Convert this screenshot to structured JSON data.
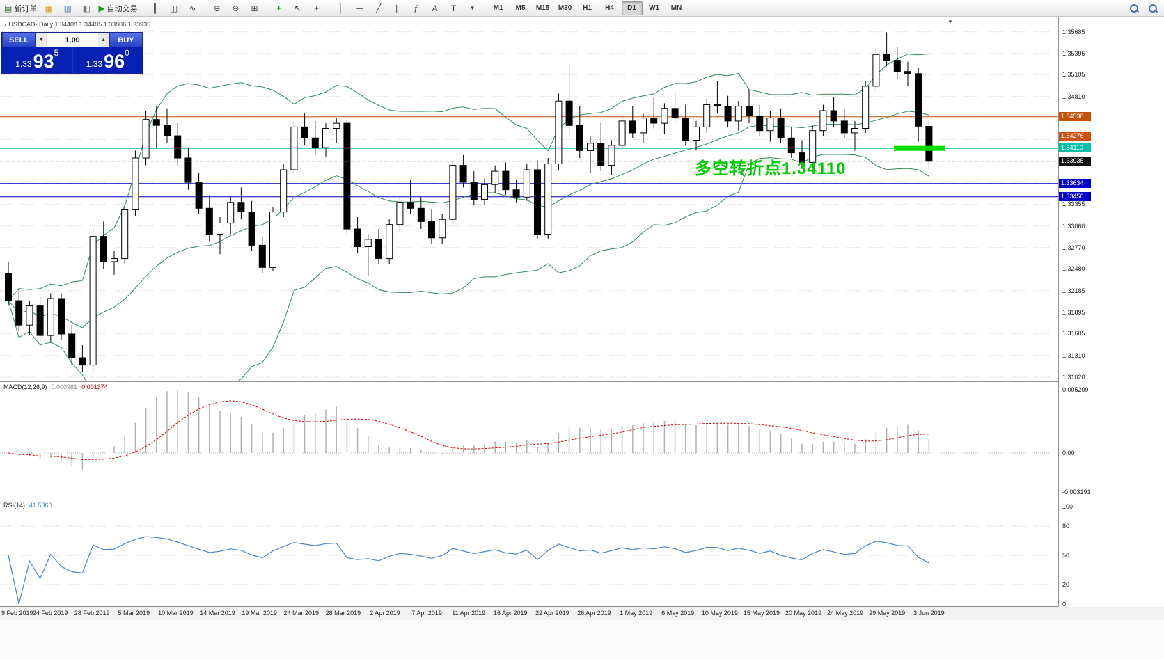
{
  "colors": {
    "up_candle": "#ffffff",
    "down_candle": "#000000",
    "candle_border": "#000000",
    "band_green": "#2e8b57",
    "grid": "#d9d9d9",
    "macd_hist": "#b0b0b0",
    "macd_signal": "#e00000",
    "rsi_line": "#4a86c8",
    "level_orange": "#c65309",
    "level_teal": "#00c0a8",
    "level_blue": "#0000cc",
    "annotation_green": "#00cc00",
    "segment_green": "#00dd00",
    "current_badge": "#111111",
    "panel_blue": "#0d31d6",
    "button_blue": "#2743c8"
  },
  "icons": {
    "symbol-marker": "▴",
    "new-order": "▤",
    "market-watch": "▦",
    "data-window": "▥",
    "navigator": "◧",
    "auto-trading": "▶",
    "bar-chart": "║",
    "candle-chart": "◫",
    "line-chart": "∿",
    "zoom-in": "⊕",
    "zoom-out": "⊖",
    "tile-windows": "⊞",
    "indicators": "+",
    "cursor": "↖",
    "crosshair": "+",
    "vertical-line": "│",
    "horizontal-line": "─",
    "trendline": "╱",
    "channel": "∥",
    "fibonacci": "ƒ",
    "text": "A",
    "label": "T",
    "shapes": "▼",
    "shift-marker": "▼"
  },
  "toolbar": {
    "new_order": "新订单",
    "auto_trading": "自动交易",
    "timeframes": [
      "M1",
      "M5",
      "M15",
      "M30",
      "H1",
      "H4",
      "D1",
      "W1",
      "MN"
    ],
    "active_timeframe": "D1"
  },
  "quote_header": "USDCAD-,Daily  1.34408 1.34485 1.33806 1.33935",
  "trade_panel": {
    "sell_label": "SELL",
    "buy_label": "BUY",
    "volume": "1.00",
    "sell_small": "1.33",
    "sell_main": "93",
    "sell_sup": "5",
    "buy_small": "1.33",
    "buy_main": "96",
    "buy_sup": "0"
  },
  "annotation": {
    "text": "多空转折点1.34110"
  },
  "macd_panel": {
    "label": "MACD(12,26,9)",
    "value1": "0.000961",
    "value2": "0.001374",
    "axis_max": "0.005209",
    "axis_zero": "0.00",
    "axis_min": "-0.003191"
  },
  "rsi_panel": {
    "label": "RSI(14)",
    "value": "41.5360",
    "axis": [
      100,
      80,
      50,
      20,
      0
    ],
    "levels": [
      80,
      50,
      20
    ]
  },
  "chart_data": {
    "type": "candlestick",
    "symbol": "USDCAD-",
    "timeframe": "Daily",
    "ohlc_display": {
      "open": "1.34408",
      "high": "1.34485",
      "low": "1.33806",
      "close": "1.33935"
    },
    "current_price": 1.33935,
    "price_range": [
      1.3096,
      1.3589
    ],
    "y_ticks": [
      "1.35685",
      "1.35395",
      "1.35105",
      "1.34810",
      "1.34520",
      "1.34230",
      "1.33940",
      "1.33645",
      "1.33355",
      "1.33060",
      "1.32770",
      "1.32480",
      "1.32185",
      "1.31895",
      "1.31605",
      "1.31310",
      "1.31020"
    ],
    "x_labels": [
      "9 Feb 2019",
      "24 Feb 2019",
      "28 Feb 2019",
      "5 Mar 2019",
      "10 Mar 2019",
      "14 Mar 2019",
      "19 Mar 2019",
      "24 Mar 2019",
      "28 Mar 2019",
      "2 Apr 2019",
      "7 Apr 2019",
      "11 Apr 2019",
      "16 Apr 2019",
      "22 Apr 2019",
      "26 Apr 2019",
      "1 May 2019",
      "6 May 2019",
      "10 May 2019",
      "15 May 2019",
      "20 May 2019",
      "24 May 2019",
      "29 May 2019",
      "3 Jun 2019"
    ],
    "levels": [
      {
        "label": "1.34538",
        "price": 1.34538,
        "color": "#c65309"
      },
      {
        "label": "1.34276",
        "price": 1.34276,
        "color": "#c65309"
      },
      {
        "label": "1.34110",
        "price": 1.3411,
        "color": "#00c0a8"
      },
      {
        "label": "1.33634",
        "price": 1.33634,
        "color": "#0000cc"
      },
      {
        "label": "1.33456",
        "price": 1.33456,
        "color": "#0000cc"
      }
    ],
    "price_badges": [
      {
        "value": "1.34538",
        "price": 1.34538,
        "bg": "#c65309"
      },
      {
        "value": "1.34276",
        "price": 1.34276,
        "bg": "#c65309"
      },
      {
        "value": "1.34110",
        "price": 1.3411,
        "bg": "#00c0a8"
      },
      {
        "value": "1.33935",
        "price": 1.33935,
        "bg": "#111111"
      },
      {
        "value": "1.33634",
        "price": 1.33634,
        "bg": "#0000cc"
      },
      {
        "value": "1.33456",
        "price": 1.33456,
        "bg": "#0000cc"
      }
    ],
    "green_segment": {
      "price": 1.3411,
      "from_frac": 0.845,
      "to_frac": 0.894
    },
    "indicators": [
      {
        "name": "Bollinger Bands",
        "period": 20,
        "deviation": 2
      },
      {
        "name": "MACD",
        "params": [
          12,
          26,
          9
        ],
        "current": [
          0.000961,
          0.001374
        ],
        "range": [
          -0.003191,
          0.005209
        ]
      },
      {
        "name": "RSI",
        "period": 14,
        "current": 41.536
      }
    ],
    "candles": [
      [
        1.3242,
        1.3258,
        1.3198,
        1.3205
      ],
      [
        1.3205,
        1.3222,
        1.3165,
        1.3172
      ],
      [
        1.3172,
        1.3205,
        1.3158,
        1.3198
      ],
      [
        1.3198,
        1.321,
        1.315,
        1.3158
      ],
      [
        1.3158,
        1.3215,
        1.3148,
        1.3208
      ],
      [
        1.3208,
        1.3215,
        1.3152,
        1.316
      ],
      [
        1.316,
        1.3172,
        1.3118,
        1.3128
      ],
      [
        1.3128,
        1.3145,
        1.3108,
        1.3118
      ],
      [
        1.3118,
        1.3302,
        1.311,
        1.3292
      ],
      [
        1.3292,
        1.3312,
        1.3248,
        1.3258
      ],
      [
        1.3258,
        1.3272,
        1.324,
        1.3262
      ],
      [
        1.3262,
        1.3335,
        1.3255,
        1.3328
      ],
      [
        1.3328,
        1.3408,
        1.332,
        1.3398
      ],
      [
        1.3398,
        1.3462,
        1.3388,
        1.345
      ],
      [
        1.345,
        1.3468,
        1.3412,
        1.3442
      ],
      [
        1.3442,
        1.3465,
        1.3418,
        1.3428
      ],
      [
        1.3428,
        1.3445,
        1.3388,
        1.3398
      ],
      [
        1.3398,
        1.3412,
        1.3355,
        1.3365
      ],
      [
        1.3365,
        1.3378,
        1.3322,
        1.333
      ],
      [
        1.333,
        1.3348,
        1.3285,
        1.3295
      ],
      [
        1.3295,
        1.3318,
        1.3268,
        1.331
      ],
      [
        1.331,
        1.3345,
        1.3295,
        1.3338
      ],
      [
        1.3338,
        1.3358,
        1.3315,
        1.3325
      ],
      [
        1.3325,
        1.334,
        1.3272,
        1.328
      ],
      [
        1.328,
        1.3292,
        1.3242,
        1.325
      ],
      [
        1.325,
        1.3332,
        1.3245,
        1.3325
      ],
      [
        1.3325,
        1.339,
        1.3318,
        1.3382
      ],
      [
        1.3382,
        1.3448,
        1.3375,
        1.344
      ],
      [
        1.344,
        1.3458,
        1.3415,
        1.3425
      ],
      [
        1.3425,
        1.3448,
        1.3402,
        1.3412
      ],
      [
        1.3412,
        1.3445,
        1.34,
        1.3438
      ],
      [
        1.3438,
        1.3452,
        1.3418,
        1.3445
      ],
      [
        1.3445,
        1.345,
        1.3295,
        1.3302
      ],
      [
        1.3302,
        1.3318,
        1.327,
        1.3278
      ],
      [
        1.3278,
        1.3295,
        1.3238,
        1.3288
      ],
      [
        1.3288,
        1.3302,
        1.3255,
        1.3262
      ],
      [
        1.3262,
        1.3315,
        1.3255,
        1.3308
      ],
      [
        1.3308,
        1.3345,
        1.3298,
        1.3338
      ],
      [
        1.3338,
        1.3368,
        1.3322,
        1.333
      ],
      [
        1.333,
        1.3345,
        1.3302,
        1.3312
      ],
      [
        1.3312,
        1.3328,
        1.3282,
        1.329
      ],
      [
        1.329,
        1.3322,
        1.3282,
        1.3315
      ],
      [
        1.3315,
        1.3395,
        1.3308,
        1.3388
      ],
      [
        1.3388,
        1.3402,
        1.3358,
        1.3365
      ],
      [
        1.3365,
        1.338,
        1.3335,
        1.3342
      ],
      [
        1.3342,
        1.337,
        1.3335,
        1.3362
      ],
      [
        1.3362,
        1.3388,
        1.335,
        1.338
      ],
      [
        1.338,
        1.3392,
        1.3348,
        1.3355
      ],
      [
        1.3355,
        1.3368,
        1.3338,
        1.3345
      ],
      [
        1.3345,
        1.339,
        1.334,
        1.3382
      ],
      [
        1.3382,
        1.3395,
        1.3288,
        1.3295
      ],
      [
        1.3295,
        1.3398,
        1.3288,
        1.339
      ],
      [
        1.339,
        1.3485,
        1.3382,
        1.3475
      ],
      [
        1.3475,
        1.3525,
        1.3428,
        1.3442
      ],
      [
        1.3442,
        1.3468,
        1.3398,
        1.3408
      ],
      [
        1.3408,
        1.3428,
        1.3378,
        1.3418
      ],
      [
        1.3418,
        1.3445,
        1.338,
        1.3388
      ],
      [
        1.3388,
        1.3422,
        1.3375,
        1.3415
      ],
      [
        1.3415,
        1.3455,
        1.3408,
        1.3448
      ],
      [
        1.3448,
        1.3468,
        1.3425,
        1.3432
      ],
      [
        1.3432,
        1.3458,
        1.3418,
        1.3452
      ],
      [
        1.3452,
        1.348,
        1.3438,
        1.3445
      ],
      [
        1.3445,
        1.3472,
        1.343,
        1.3465
      ],
      [
        1.3465,
        1.3488,
        1.3445,
        1.3452
      ],
      [
        1.3452,
        1.347,
        1.3415,
        1.3422
      ],
      [
        1.3422,
        1.3448,
        1.3408,
        1.344
      ],
      [
        1.344,
        1.3478,
        1.3432,
        1.347
      ],
      [
        1.347,
        1.3502,
        1.3458,
        1.3468
      ],
      [
        1.3468,
        1.3482,
        1.344,
        1.3448
      ],
      [
        1.3448,
        1.3475,
        1.3435,
        1.3468
      ],
      [
        1.3468,
        1.349,
        1.3445,
        1.3455
      ],
      [
        1.3455,
        1.347,
        1.3428,
        1.3435
      ],
      [
        1.3435,
        1.3462,
        1.342,
        1.3452
      ],
      [
        1.3452,
        1.3465,
        1.3418,
        1.3425
      ],
      [
        1.3425,
        1.344,
        1.3398,
        1.3405
      ],
      [
        1.3405,
        1.3422,
        1.3385,
        1.3392
      ],
      [
        1.3392,
        1.3442,
        1.3385,
        1.3435
      ],
      [
        1.3435,
        1.347,
        1.3428,
        1.3462
      ],
      [
        1.3462,
        1.348,
        1.344,
        1.3448
      ],
      [
        1.3448,
        1.3465,
        1.3425,
        1.3432
      ],
      [
        1.3432,
        1.3448,
        1.3408,
        1.3438
      ],
      [
        1.3438,
        1.3502,
        1.3432,
        1.3495
      ],
      [
        1.3495,
        1.3545,
        1.3488,
        1.3538
      ],
      [
        1.3538,
        1.3568,
        1.3522,
        1.353
      ],
      [
        1.353,
        1.3548,
        1.3505,
        1.3515
      ],
      [
        1.3515,
        1.3528,
        1.3495,
        1.3512
      ],
      [
        1.3512,
        1.352,
        1.342,
        1.3441
      ],
      [
        1.34408,
        1.34485,
        1.33806,
        1.33935
      ]
    ]
  }
}
